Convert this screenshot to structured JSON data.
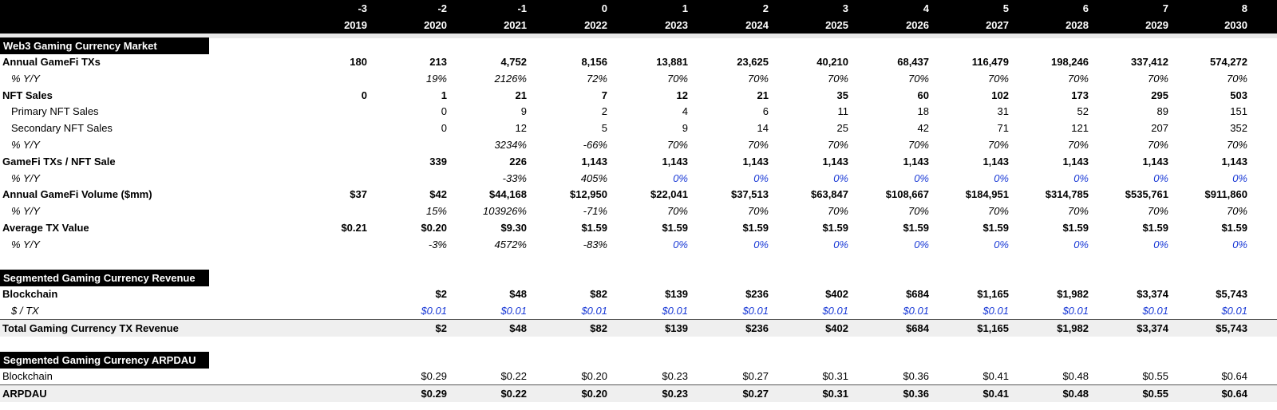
{
  "header": {
    "offsets": [
      "-3",
      "-2",
      "-1",
      "0",
      "1",
      "2",
      "3",
      "4",
      "5",
      "6",
      "7",
      "8"
    ],
    "years": [
      "2019",
      "2020",
      "2021",
      "2022",
      "2023",
      "2024",
      "2025",
      "2026",
      "2027",
      "2028",
      "2029",
      "2030"
    ]
  },
  "sections": [
    {
      "title": "Web3 Gaming Currency Market",
      "rows": [
        {
          "label": "Annual GameFi TXs",
          "style": "bold",
          "values": [
            "180",
            "213",
            "4,752",
            "8,156",
            "13,881",
            "23,625",
            "40,210",
            "68,437",
            "116,479",
            "198,246",
            "337,412",
            "574,272"
          ]
        },
        {
          "label": "% Y/Y",
          "style": "pct",
          "values": [
            "",
            "19%",
            "2126%",
            "72%",
            "70%",
            "70%",
            "70%",
            "70%",
            "70%",
            "70%",
            "70%",
            "70%"
          ]
        },
        {
          "label": "NFT Sales",
          "style": "bold",
          "values": [
            "0",
            "1",
            "21",
            "7",
            "12",
            "21",
            "35",
            "60",
            "102",
            "173",
            "295",
            "503"
          ]
        },
        {
          "label": "Primary NFT Sales",
          "style": "sub",
          "values": [
            "",
            "0",
            "9",
            "2",
            "4",
            "6",
            "11",
            "18",
            "31",
            "52",
            "89",
            "151"
          ]
        },
        {
          "label": "Secondary NFT Sales",
          "style": "sub",
          "values": [
            "",
            "0",
            "12",
            "5",
            "9",
            "14",
            "25",
            "42",
            "71",
            "121",
            "207",
            "352"
          ]
        },
        {
          "label": "% Y/Y",
          "style": "pct",
          "values": [
            "",
            "",
            "3234%",
            "-66%",
            "70%",
            "70%",
            "70%",
            "70%",
            "70%",
            "70%",
            "70%",
            "70%"
          ]
        },
        {
          "label": "GameFi TXs / NFT Sale",
          "style": "bold",
          "values": [
            "",
            "339",
            "226",
            "1,143",
            "1,143",
            "1,143",
            "1,143",
            "1,143",
            "1,143",
            "1,143",
            "1,143",
            "1,143"
          ]
        },
        {
          "label": "% Y/Y",
          "style": "pct",
          "blueFrom": 4,
          "values": [
            "",
            "",
            "-33%",
            "405%",
            "0%",
            "0%",
            "0%",
            "0%",
            "0%",
            "0%",
            "0%",
            "0%"
          ]
        },
        {
          "label": "Annual GameFi Volume ($mm)",
          "style": "bold",
          "values": [
            "$37",
            "$42",
            "$44,168",
            "$12,950",
            "$22,041",
            "$37,513",
            "$63,847",
            "$108,667",
            "$184,951",
            "$314,785",
            "$535,761",
            "$911,860"
          ]
        },
        {
          "label": "% Y/Y",
          "style": "pct",
          "values": [
            "",
            "15%",
            "103926%",
            "-71%",
            "70%",
            "70%",
            "70%",
            "70%",
            "70%",
            "70%",
            "70%",
            "70%"
          ]
        },
        {
          "label": "Average TX Value",
          "style": "bold",
          "values": [
            "$0.21",
            "$0.20",
            "$9.30",
            "$1.59",
            "$1.59",
            "$1.59",
            "$1.59",
            "$1.59",
            "$1.59",
            "$1.59",
            "$1.59",
            "$1.59"
          ]
        },
        {
          "label": "% Y/Y",
          "style": "pct",
          "blueFrom": 4,
          "values": [
            "",
            "-3%",
            "4572%",
            "-83%",
            "0%",
            "0%",
            "0%",
            "0%",
            "0%",
            "0%",
            "0%",
            "0%"
          ]
        }
      ]
    },
    {
      "title": "Segmented Gaming Currency Revenue",
      "rows": [
        {
          "label": "Blockchain",
          "style": "bold",
          "values": [
            "",
            "$2",
            "$48",
            "$82",
            "$139",
            "$236",
            "$402",
            "$684",
            "$1,165",
            "$1,982",
            "$3,374",
            "$5,743"
          ]
        },
        {
          "label": "$ / TX",
          "style": "pct",
          "blueFrom": 1,
          "values": [
            "",
            "$0.01",
            "$0.01",
            "$0.01",
            "$0.01",
            "$0.01",
            "$0.01",
            "$0.01",
            "$0.01",
            "$0.01",
            "$0.01",
            "$0.01"
          ]
        },
        {
          "label": "Total Gaming Currency TX Revenue",
          "style": "total",
          "values": [
            "",
            "$2",
            "$48",
            "$82",
            "$139",
            "$236",
            "$402",
            "$684",
            "$1,165",
            "$1,982",
            "$3,374",
            "$5,743"
          ]
        }
      ]
    },
    {
      "title": "Segmented Gaming Currency ARPDAU",
      "rows": [
        {
          "label": "Blockchain",
          "style": "plain",
          "values": [
            "",
            "$0.29",
            "$0.22",
            "$0.20",
            "$0.23",
            "$0.27",
            "$0.31",
            "$0.36",
            "$0.41",
            "$0.48",
            "$0.55",
            "$0.64"
          ]
        },
        {
          "label": "ARPDAU",
          "style": "total",
          "values": [
            "",
            "$0.29",
            "$0.22",
            "$0.20",
            "$0.23",
            "$0.27",
            "$0.31",
            "$0.36",
            "$0.41",
            "$0.48",
            "$0.55",
            "$0.64"
          ]
        }
      ]
    }
  ]
}
